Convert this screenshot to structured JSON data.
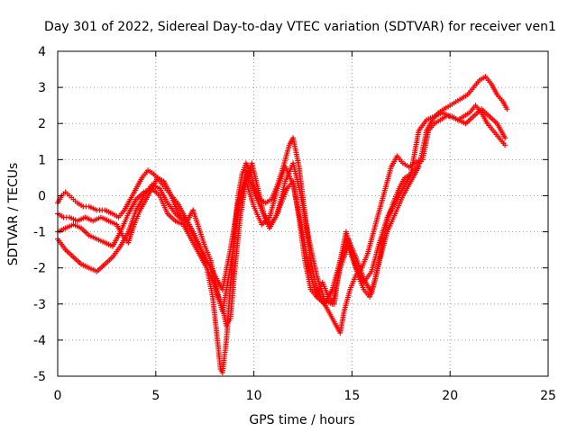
{
  "chart_data": {
    "type": "scatter",
    "title": "Day 301 of 2022, Sidereal Day-to-day VTEC variation (SDTVAR) for receiver ven1",
    "xlabel": "GPS time / hours",
    "ylabel": "SDTVAR / TECUs",
    "xlim": [
      0,
      25
    ],
    "ylim": [
      -5,
      4
    ],
    "xticks": [
      "0",
      "5",
      "10",
      "15",
      "20",
      "25"
    ],
    "yticks": [
      "-5",
      "-4",
      "-3",
      "-2",
      "-1",
      "0",
      "1",
      "2",
      "3",
      "4"
    ],
    "grid": true,
    "marker": "plus",
    "color": "#ff0000",
    "series": [
      {
        "x": [
          0.0,
          0.2,
          0.4,
          0.6,
          0.8,
          1.0,
          1.3,
          1.6,
          2.0,
          2.4,
          2.8,
          3.1,
          3.4,
          3.6,
          3.8,
          4.0,
          4.3,
          4.6,
          4.9,
          5.2,
          5.5,
          5.8,
          6.1,
          6.4,
          6.7,
          7.0,
          7.3,
          7.6,
          7.9,
          8.1,
          8.3,
          8.4,
          8.6,
          8.8,
          9.0,
          9.2,
          9.4,
          9.6,
          9.8,
          10.0,
          10.3,
          10.6,
          10.9,
          11.2,
          11.5,
          11.8,
          12.0,
          12.3,
          12.6,
          12.9,
          13.2,
          13.5,
          13.8,
          14.1,
          14.4,
          14.6,
          14.9,
          15.2,
          15.5,
          15.8,
          16.1,
          16.4,
          16.7,
          17.0,
          17.3,
          17.6,
          17.9,
          18.2,
          18.5,
          18.8,
          19.1,
          19.4,
          19.7,
          20.0,
          20.3,
          20.6,
          20.9,
          21.2,
          21.5,
          21.8,
          22.1,
          22.4,
          22.7,
          22.9
        ],
        "y": [
          -0.2,
          0.0,
          0.1,
          0.0,
          -0.1,
          -0.2,
          -0.3,
          -0.3,
          -0.4,
          -0.4,
          -0.5,
          -0.6,
          -0.4,
          -0.2,
          0.0,
          0.2,
          0.5,
          0.7,
          0.6,
          0.4,
          0.2,
          0.0,
          -0.2,
          -0.5,
          -0.8,
          -1.1,
          -1.5,
          -2.0,
          -2.8,
          -3.8,
          -4.8,
          -4.9,
          -4.0,
          -2.5,
          -1.0,
          0.0,
          0.6,
          0.9,
          0.7,
          0.3,
          -0.1,
          -0.2,
          -0.1,
          0.3,
          0.8,
          1.4,
          1.6,
          0.8,
          -0.5,
          -1.8,
          -2.6,
          -2.9,
          -3.2,
          -3.5,
          -3.8,
          -3.2,
          -2.6,
          -2.2,
          -2.0,
          -1.6,
          -1.0,
          -0.4,
          0.2,
          0.8,
          1.1,
          0.9,
          0.8,
          0.9,
          1.0,
          1.8,
          2.1,
          2.3,
          2.4,
          2.5,
          2.6,
          2.7,
          2.8,
          3.0,
          3.2,
          3.3,
          3.1,
          2.8,
          2.6,
          2.4
        ]
      },
      {
        "x": [
          0.0,
          0.3,
          0.6,
          1.0,
          1.4,
          1.8,
          2.2,
          2.6,
          3.0,
          3.3,
          3.6,
          3.9,
          4.2,
          4.5,
          4.8,
          5.1,
          5.4,
          5.7,
          6.0,
          6.3,
          6.6,
          6.9,
          7.2,
          7.5,
          7.8,
          8.0,
          8.2,
          8.4,
          8.6,
          8.8,
          9.0,
          9.3,
          9.6,
          9.9,
          10.2,
          10.5,
          10.8,
          11.1,
          11.4,
          11.7,
          12.0,
          12.3,
          12.6,
          12.9,
          13.2,
          13.5,
          13.8,
          14.1,
          14.4,
          14.7,
          15.0,
          15.3,
          15.6,
          15.9,
          16.2,
          16.5,
          16.8,
          17.1,
          17.4,
          17.7,
          18.0,
          18.3,
          18.6,
          18.9,
          19.2,
          19.5,
          19.8,
          20.1,
          20.4,
          20.7,
          21.0,
          21.3,
          21.6,
          21.9,
          22.2,
          22.5,
          22.8
        ],
        "y": [
          -0.5,
          -0.6,
          -0.6,
          -0.7,
          -0.6,
          -0.7,
          -0.6,
          -0.7,
          -0.8,
          -1.1,
          -1.3,
          -0.8,
          -0.4,
          -0.1,
          0.2,
          0.5,
          0.4,
          0.1,
          -0.3,
          -0.6,
          -0.7,
          -0.4,
          -0.9,
          -1.4,
          -1.8,
          -2.3,
          -2.8,
          -3.1,
          -3.6,
          -3.4,
          -2.2,
          -0.6,
          0.4,
          0.9,
          0.2,
          -0.5,
          -0.8,
          -0.6,
          -0.2,
          0.2,
          0.4,
          -0.6,
          -1.8,
          -2.6,
          -2.8,
          -2.4,
          -2.8,
          -3.0,
          -1.8,
          -1.0,
          -1.6,
          -2.2,
          -2.6,
          -2.8,
          -2.3,
          -1.5,
          -0.7,
          -0.2,
          0.2,
          0.5,
          0.6,
          0.8,
          1.0,
          1.8,
          2.0,
          2.1,
          2.2,
          2.2,
          2.1,
          2.2,
          2.3,
          2.5,
          2.3,
          2.0,
          1.8,
          1.6,
          1.4
        ]
      },
      {
        "x": [
          0.0,
          0.4,
          0.8,
          1.2,
          1.6,
          2.0,
          2.4,
          2.8,
          3.2,
          3.6,
          4.0,
          4.4,
          4.8,
          5.2,
          5.6,
          6.0,
          6.4,
          6.8,
          7.2,
          7.6,
          8.0,
          8.4,
          8.8,
          9.2,
          9.6,
          10.0,
          10.4,
          10.8,
          11.2,
          11.6,
          12.0,
          12.4,
          12.8,
          13.2,
          13.6,
          14.0,
          14.4,
          14.8,
          15.2,
          15.6,
          16.0,
          16.4,
          16.8,
          17.2,
          17.6,
          18.0,
          18.4,
          18.8,
          19.2,
          19.6,
          20.0,
          20.4,
          20.8,
          21.2,
          21.6,
          22.0,
          22.4,
          22.8
        ],
        "y": [
          -1.0,
          -0.9,
          -0.8,
          -0.9,
          -1.1,
          -1.2,
          -1.3,
          -1.4,
          -1.0,
          -0.5,
          -0.1,
          0.1,
          0.2,
          0.0,
          -0.5,
          -0.7,
          -0.8,
          -1.2,
          -1.6,
          -2.0,
          -2.5,
          -3.2,
          -2.0,
          -0.5,
          0.7,
          0.1,
          -0.4,
          -0.9,
          -0.5,
          0.4,
          0.9,
          0.0,
          -1.2,
          -2.2,
          -2.9,
          -3.0,
          -2.0,
          -1.4,
          -2.0,
          -2.4,
          -2.1,
          -1.3,
          -0.6,
          -0.2,
          0.2,
          0.6,
          1.8,
          2.1,
          2.2,
          2.3,
          2.2,
          2.1,
          2.0,
          2.2,
          2.4,
          2.2,
          2.0,
          1.6
        ]
      },
      {
        "x": [
          0.0,
          0.4,
          0.8,
          1.2,
          1.6,
          2.0,
          2.4,
          2.8,
          3.2,
          3.6,
          4.0,
          4.4,
          4.8,
          5.2,
          5.6,
          6.0,
          6.4,
          6.8,
          7.2,
          7.6,
          8.0,
          8.4,
          8.8,
          9.2,
          9.6,
          10.0,
          10.4,
          10.8,
          11.2,
          11.6,
          12.0,
          12.4,
          12.8,
          13.2,
          13.6,
          14.0,
          14.4,
          14.8,
          15.2,
          15.6,
          16.0,
          16.4,
          16.8,
          17.2,
          17.6,
          18.0,
          18.4
        ],
        "y": [
          -1.2,
          -1.5,
          -1.7,
          -1.9,
          -2.0,
          -2.1,
          -1.9,
          -1.7,
          -1.4,
          -1.0,
          -0.4,
          0.0,
          0.3,
          0.2,
          -0.2,
          -0.5,
          -0.7,
          -1.0,
          -1.4,
          -1.8,
          -2.2,
          -2.6,
          -1.5,
          -0.2,
          0.4,
          -0.3,
          -0.8,
          -0.6,
          0.2,
          0.8,
          0.3,
          -0.8,
          -2.0,
          -2.8,
          -3.0,
          -2.6,
          -1.8,
          -1.2,
          -1.7,
          -2.3,
          -2.7,
          -1.8,
          -1.0,
          -0.5,
          0.0,
          0.4,
          0.8
        ]
      }
    ]
  }
}
